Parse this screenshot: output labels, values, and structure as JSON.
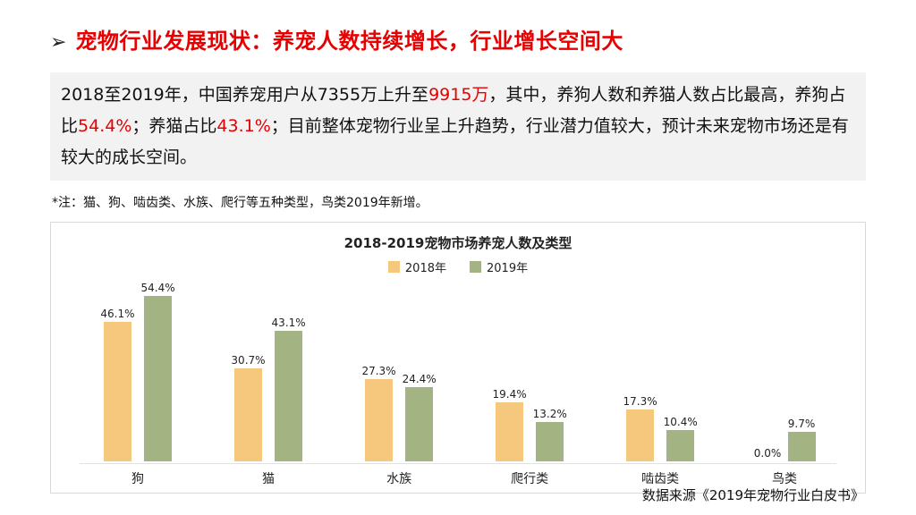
{
  "header": {
    "arrow": "➢",
    "title": "宠物行业发展现状：养宠人数持续增长，行业增长空间大"
  },
  "intro": {
    "segments": [
      {
        "text": "2018至2019年，中国养宠用户从7355万上升至",
        "highlight": false
      },
      {
        "text": "9915万",
        "highlight": true
      },
      {
        "text": "，其中，养狗人数和养猫人数占比最高，养狗占比",
        "highlight": false
      },
      {
        "text": "54.4%",
        "highlight": true
      },
      {
        "text": "；养猫占比",
        "highlight": false
      },
      {
        "text": "43.1%",
        "highlight": true
      },
      {
        "text": "；目前整体宠物行业呈上升趋势，行业潜力值较大，预计未来宠物市场还是有较大的成长空间。",
        "highlight": false
      }
    ]
  },
  "note": "*注：猫、狗、啮齿类、水族、爬行等五种类型，鸟类2019年新增。",
  "source": "数据来源《2019年宠物行业白皮书》",
  "colors": {
    "accent_red": "#e60000",
    "paragraph_bg": "#f2f2f2",
    "chart_border": "#d9d9d9",
    "bar_2018": "#f5c87d",
    "bar_2019": "#a3b482"
  },
  "chart_data": {
    "type": "bar",
    "title": "2018-2019宠物市场养宠人数及类型",
    "categories": [
      "狗",
      "猫",
      "水族",
      "爬行类",
      "啮齿类",
      "鸟类"
    ],
    "series": [
      {
        "name": "2018年",
        "color": "#f5c87d",
        "values": [
          46.1,
          30.7,
          27.3,
          19.4,
          17.3,
          0.0
        ]
      },
      {
        "name": "2019年",
        "color": "#a3b482",
        "values": [
          54.4,
          43.1,
          24.4,
          13.2,
          10.4,
          9.7
        ]
      }
    ],
    "value_suffix": "%",
    "ylim": [
      0,
      60
    ],
    "legend_position": "top",
    "grid": false
  }
}
